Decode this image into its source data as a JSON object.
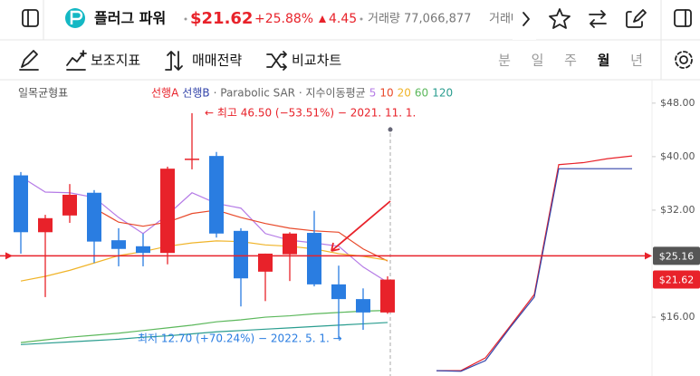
{
  "header": {
    "name": "플러그 파워",
    "price": "$21.62",
    "change_pct": "+25.88%",
    "change": "4.45",
    "volume": "거래량 77,066,877",
    "volume_cut": "거래대"
  },
  "toolbar": {
    "buttons": [
      "보조지표",
      "매매전략",
      "비교차트"
    ],
    "periods": [
      "분",
      "일",
      "주",
      "월",
      "년"
    ],
    "selected": 3
  },
  "chart_data": {
    "type": "candlestick",
    "indicator_title": "일목균형표",
    "legend_extra": "· Parabolic SAR · 지수이동평균",
    "open": [
      37.2,
      28.7,
      31.2,
      34.6,
      27.5,
      26.6,
      25.6,
      39.6,
      40.1,
      28.9,
      22.8,
      25.4,
      28.6,
      20.9,
      18.7,
      16.7
    ],
    "high": [
      37.7,
      31.3,
      35.9,
      35.0,
      29.3,
      28.5,
      38.5,
      46.5,
      40.7,
      29.3,
      25.5,
      28.7,
      31.9,
      23.7,
      20.3,
      22.1
    ],
    "low": [
      25.5,
      19.0,
      30.1,
      24.1,
      23.6,
      23.6,
      23.9,
      38.1,
      27.9,
      17.6,
      18.4,
      21.4,
      20.6,
      12.7,
      14.1,
      16.5
    ],
    "close": [
      28.7,
      30.8,
      34.3,
      27.3,
      26.2,
      25.6,
      38.2,
      39.7,
      28.5,
      21.8,
      25.5,
      28.5,
      20.9,
      18.7,
      16.7,
      21.62
    ],
    "up_color": "#e8222a",
    "down_color": "#2a7de1",
    "series": [
      {
        "name": "선행A",
        "color": "#e8222a",
        "values": [
          null,
          null,
          null,
          null,
          null,
          null,
          null,
          null,
          null,
          null,
          null,
          null,
          null,
          null,
          null,
          null,
          null,
          8.0,
          8.0,
          9.9,
          14.6,
          19.4,
          38.8,
          39.1,
          39.7,
          40.1
        ]
      },
      {
        "name": "선행B",
        "color": "#3344aa",
        "values": [
          null,
          null,
          null,
          null,
          null,
          null,
          null,
          null,
          null,
          null,
          null,
          null,
          null,
          null,
          null,
          null,
          null,
          8.0,
          7.9,
          9.5,
          14.4,
          19.0,
          38.2,
          38.2,
          38.2,
          38.2
        ]
      },
      {
        "name": "5",
        "color": "#b57be6",
        "values": [
          37.0,
          34.7,
          34.6,
          33.9,
          30.9,
          28.5,
          31.3,
          34.6,
          33.0,
          32.3,
          28.5,
          27.5,
          27.1,
          26.6,
          23.5,
          21.2,
          null,
          null,
          null,
          null,
          null,
          null,
          null,
          null,
          null,
          null
        ]
      },
      {
        "name": "10",
        "color": "#e8492a",
        "values": [
          null,
          null,
          null,
          32.3,
          30.2,
          29.6,
          30.2,
          31.5,
          32.0,
          30.9,
          30.0,
          29.3,
          28.9,
          28.7,
          26.2,
          24.4,
          null,
          null,
          null,
          null,
          null,
          null,
          null,
          null,
          null,
          null
        ]
      },
      {
        "name": "20",
        "color": "#f0b429",
        "values": [
          21.4,
          22.1,
          23.0,
          24.1,
          25.2,
          25.8,
          26.6,
          27.1,
          27.4,
          27.3,
          26.8,
          26.6,
          26.2,
          25.5,
          25.1,
          24.5,
          null,
          null,
          null,
          null,
          null,
          null,
          null,
          null,
          null,
          null
        ]
      },
      {
        "name": "60",
        "color": "#5cb85c",
        "values": [
          12.2,
          12.6,
          13.0,
          13.3,
          13.6,
          14.0,
          14.4,
          14.8,
          15.3,
          15.6,
          16.0,
          16.2,
          16.5,
          16.7,
          16.9,
          17.0,
          null,
          null,
          null,
          null,
          null,
          null,
          null,
          null,
          null,
          null
        ]
      },
      {
        "name": "120",
        "color": "#2a9d8f",
        "values": [
          11.9,
          12.1,
          12.3,
          12.5,
          12.7,
          13.0,
          13.2,
          13.5,
          13.8,
          14.0,
          14.2,
          14.4,
          14.6,
          14.8,
          15.0,
          15.2,
          null,
          null,
          null,
          null,
          null,
          null,
          null,
          null,
          null,
          null
        ]
      }
    ],
    "ylim": [
      7.2,
      51.5
    ],
    "yticks": [
      {
        "value": 48,
        "label": "$48.00"
      },
      {
        "value": 40,
        "label": "$40.00"
      },
      {
        "value": 32,
        "label": "$32.00"
      },
      {
        "value": 16,
        "label": "$16.00"
      }
    ],
    "price_line": {
      "value": 25.16,
      "label": "$25.16"
    },
    "current": {
      "value": 21.62,
      "label": "$21.62"
    },
    "high_note": "← 최고 46.50 (−53.51%) − 2021. 11. 1.",
    "low_note": "최저 12.70 (+70.24%) − 2022. 5. 1. →"
  }
}
